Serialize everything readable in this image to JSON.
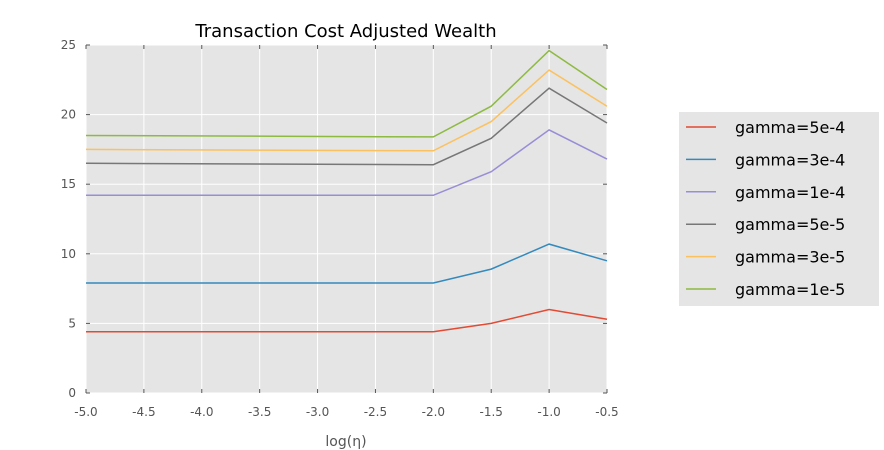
{
  "chart_data": {
    "type": "line",
    "title": "Transaction Cost Adjusted Wealth",
    "xlabel": "log(η)",
    "ylabel": "",
    "x": [
      -5.0,
      -2.0,
      -1.5,
      -1.0,
      -0.5
    ],
    "xlim": [
      -5.0,
      -0.5
    ],
    "ylim": [
      0,
      25
    ],
    "xticks": [
      "-5.0",
      "-4.5",
      "-4.0",
      "-3.5",
      "-3.0",
      "-2.5",
      "-2.0",
      "-1.5",
      "-1.0",
      "-0.5"
    ],
    "xtick_values": [
      -5.0,
      -4.5,
      -4.0,
      -3.5,
      -3.0,
      -2.5,
      -2.0,
      -1.5,
      -1.0,
      -0.5
    ],
    "yticks": [
      "0",
      "5",
      "10",
      "15",
      "20",
      "25"
    ],
    "ytick_values": [
      0,
      5,
      10,
      15,
      20,
      25
    ],
    "grid": true,
    "legend_position": "right",
    "background": "#e5e5e5",
    "series": [
      {
        "name": "gamma=5e-4",
        "color": "#e24a33",
        "values": [
          4.4,
          4.4,
          5.0,
          6.0,
          5.3
        ]
      },
      {
        "name": "gamma=3e-4",
        "color": "#348abd",
        "values": [
          7.9,
          7.9,
          8.9,
          10.7,
          9.5
        ]
      },
      {
        "name": "gamma=1e-4",
        "color": "#988ed5",
        "values": [
          14.2,
          14.2,
          15.9,
          18.9,
          16.8
        ]
      },
      {
        "name": "gamma=5e-5",
        "color": "#777777",
        "values": [
          16.5,
          16.4,
          18.3,
          21.9,
          19.4
        ]
      },
      {
        "name": "gamma=3e-5",
        "color": "#fbc15e",
        "values": [
          17.5,
          17.4,
          19.5,
          23.2,
          20.6
        ]
      },
      {
        "name": "gamma=1e-5",
        "color": "#8eba42",
        "values": [
          18.5,
          18.4,
          20.6,
          24.6,
          21.8
        ]
      }
    ]
  }
}
